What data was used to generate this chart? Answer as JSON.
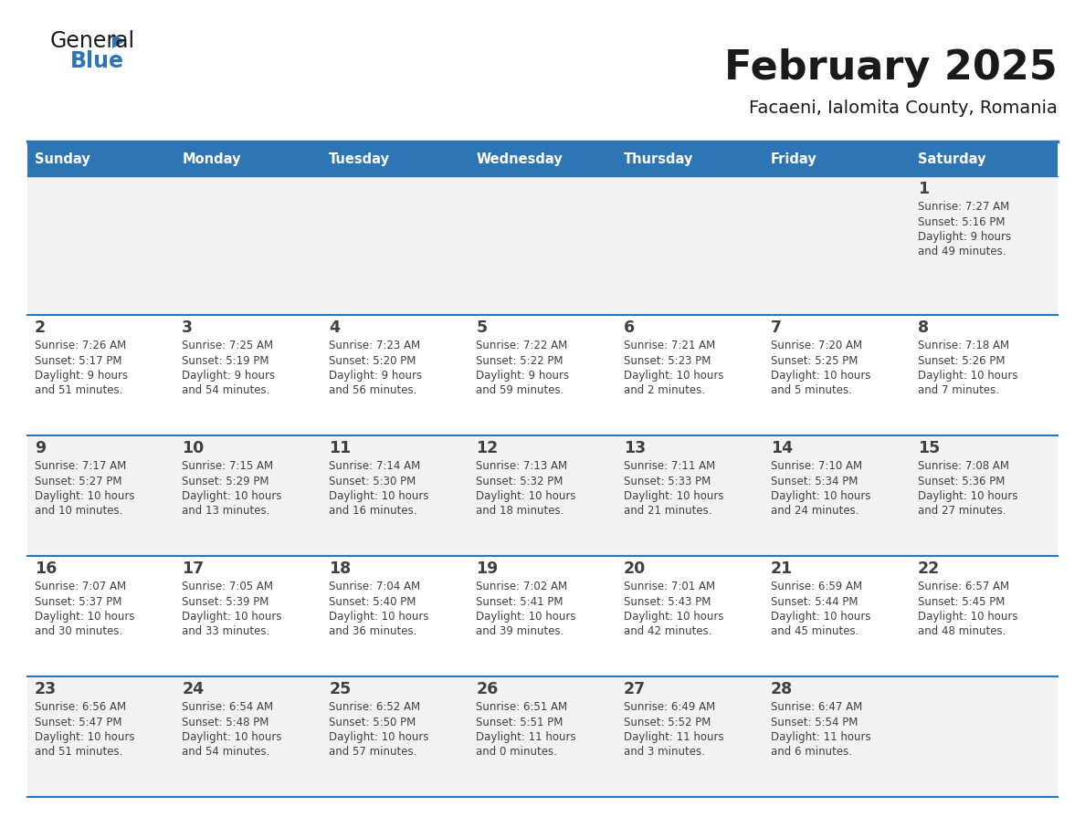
{
  "title": "February 2025",
  "subtitle": "Facaeni, Ialomita County, Romania",
  "header_bg": "#2e75b6",
  "header_text": "#ffffff",
  "cell_bg_odd": "#f2f2f2",
  "cell_bg_even": "#ffffff",
  "border_color": "#2e75b6",
  "day_headers": [
    "Sunday",
    "Monday",
    "Tuesday",
    "Wednesday",
    "Thursday",
    "Friday",
    "Saturday"
  ],
  "days": [
    {
      "day": 1,
      "col": 6,
      "row": 0,
      "sunrise": "7:27 AM",
      "sunset": "5:16 PM",
      "daylight_line1": "Daylight: 9 hours",
      "daylight_line2": "and 49 minutes."
    },
    {
      "day": 2,
      "col": 0,
      "row": 1,
      "sunrise": "7:26 AM",
      "sunset": "5:17 PM",
      "daylight_line1": "Daylight: 9 hours",
      "daylight_line2": "and 51 minutes."
    },
    {
      "day": 3,
      "col": 1,
      "row": 1,
      "sunrise": "7:25 AM",
      "sunset": "5:19 PM",
      "daylight_line1": "Daylight: 9 hours",
      "daylight_line2": "and 54 minutes."
    },
    {
      "day": 4,
      "col": 2,
      "row": 1,
      "sunrise": "7:23 AM",
      "sunset": "5:20 PM",
      "daylight_line1": "Daylight: 9 hours",
      "daylight_line2": "and 56 minutes."
    },
    {
      "day": 5,
      "col": 3,
      "row": 1,
      "sunrise": "7:22 AM",
      "sunset": "5:22 PM",
      "daylight_line1": "Daylight: 9 hours",
      "daylight_line2": "and 59 minutes."
    },
    {
      "day": 6,
      "col": 4,
      "row": 1,
      "sunrise": "7:21 AM",
      "sunset": "5:23 PM",
      "daylight_line1": "Daylight: 10 hours",
      "daylight_line2": "and 2 minutes."
    },
    {
      "day": 7,
      "col": 5,
      "row": 1,
      "sunrise": "7:20 AM",
      "sunset": "5:25 PM",
      "daylight_line1": "Daylight: 10 hours",
      "daylight_line2": "and 5 minutes."
    },
    {
      "day": 8,
      "col": 6,
      "row": 1,
      "sunrise": "7:18 AM",
      "sunset": "5:26 PM",
      "daylight_line1": "Daylight: 10 hours",
      "daylight_line2": "and 7 minutes."
    },
    {
      "day": 9,
      "col": 0,
      "row": 2,
      "sunrise": "7:17 AM",
      "sunset": "5:27 PM",
      "daylight_line1": "Daylight: 10 hours",
      "daylight_line2": "and 10 minutes."
    },
    {
      "day": 10,
      "col": 1,
      "row": 2,
      "sunrise": "7:15 AM",
      "sunset": "5:29 PM",
      "daylight_line1": "Daylight: 10 hours",
      "daylight_line2": "and 13 minutes."
    },
    {
      "day": 11,
      "col": 2,
      "row": 2,
      "sunrise": "7:14 AM",
      "sunset": "5:30 PM",
      "daylight_line1": "Daylight: 10 hours",
      "daylight_line2": "and 16 minutes."
    },
    {
      "day": 12,
      "col": 3,
      "row": 2,
      "sunrise": "7:13 AM",
      "sunset": "5:32 PM",
      "daylight_line1": "Daylight: 10 hours",
      "daylight_line2": "and 18 minutes."
    },
    {
      "day": 13,
      "col": 4,
      "row": 2,
      "sunrise": "7:11 AM",
      "sunset": "5:33 PM",
      "daylight_line1": "Daylight: 10 hours",
      "daylight_line2": "and 21 minutes."
    },
    {
      "day": 14,
      "col": 5,
      "row": 2,
      "sunrise": "7:10 AM",
      "sunset": "5:34 PM",
      "daylight_line1": "Daylight: 10 hours",
      "daylight_line2": "and 24 minutes."
    },
    {
      "day": 15,
      "col": 6,
      "row": 2,
      "sunrise": "7:08 AM",
      "sunset": "5:36 PM",
      "daylight_line1": "Daylight: 10 hours",
      "daylight_line2": "and 27 minutes."
    },
    {
      "day": 16,
      "col": 0,
      "row": 3,
      "sunrise": "7:07 AM",
      "sunset": "5:37 PM",
      "daylight_line1": "Daylight: 10 hours",
      "daylight_line2": "and 30 minutes."
    },
    {
      "day": 17,
      "col": 1,
      "row": 3,
      "sunrise": "7:05 AM",
      "sunset": "5:39 PM",
      "daylight_line1": "Daylight: 10 hours",
      "daylight_line2": "and 33 minutes."
    },
    {
      "day": 18,
      "col": 2,
      "row": 3,
      "sunrise": "7:04 AM",
      "sunset": "5:40 PM",
      "daylight_line1": "Daylight: 10 hours",
      "daylight_line2": "and 36 minutes."
    },
    {
      "day": 19,
      "col": 3,
      "row": 3,
      "sunrise": "7:02 AM",
      "sunset": "5:41 PM",
      "daylight_line1": "Daylight: 10 hours",
      "daylight_line2": "and 39 minutes."
    },
    {
      "day": 20,
      "col": 4,
      "row": 3,
      "sunrise": "7:01 AM",
      "sunset": "5:43 PM",
      "daylight_line1": "Daylight: 10 hours",
      "daylight_line2": "and 42 minutes."
    },
    {
      "day": 21,
      "col": 5,
      "row": 3,
      "sunrise": "6:59 AM",
      "sunset": "5:44 PM",
      "daylight_line1": "Daylight: 10 hours",
      "daylight_line2": "and 45 minutes."
    },
    {
      "day": 22,
      "col": 6,
      "row": 3,
      "sunrise": "6:57 AM",
      "sunset": "5:45 PM",
      "daylight_line1": "Daylight: 10 hours",
      "daylight_line2": "and 48 minutes."
    },
    {
      "day": 23,
      "col": 0,
      "row": 4,
      "sunrise": "6:56 AM",
      "sunset": "5:47 PM",
      "daylight_line1": "Daylight: 10 hours",
      "daylight_line2": "and 51 minutes."
    },
    {
      "day": 24,
      "col": 1,
      "row": 4,
      "sunrise": "6:54 AM",
      "sunset": "5:48 PM",
      "daylight_line1": "Daylight: 10 hours",
      "daylight_line2": "and 54 minutes."
    },
    {
      "day": 25,
      "col": 2,
      "row": 4,
      "sunrise": "6:52 AM",
      "sunset": "5:50 PM",
      "daylight_line1": "Daylight: 10 hours",
      "daylight_line2": "and 57 minutes."
    },
    {
      "day": 26,
      "col": 3,
      "row": 4,
      "sunrise": "6:51 AM",
      "sunset": "5:51 PM",
      "daylight_line1": "Daylight: 11 hours",
      "daylight_line2": "and 0 minutes."
    },
    {
      "day": 27,
      "col": 4,
      "row": 4,
      "sunrise": "6:49 AM",
      "sunset": "5:52 PM",
      "daylight_line1": "Daylight: 11 hours",
      "daylight_line2": "and 3 minutes."
    },
    {
      "day": 28,
      "col": 5,
      "row": 4,
      "sunrise": "6:47 AM",
      "sunset": "5:54 PM",
      "daylight_line1": "Daylight: 11 hours",
      "daylight_line2": "and 6 minutes."
    }
  ],
  "num_rows": 5,
  "num_cols": 7,
  "cell_text_color": "#404040",
  "day_num_color": "#404040",
  "title_color": "#1a1a1a",
  "subtitle_color": "#1a1a1a"
}
